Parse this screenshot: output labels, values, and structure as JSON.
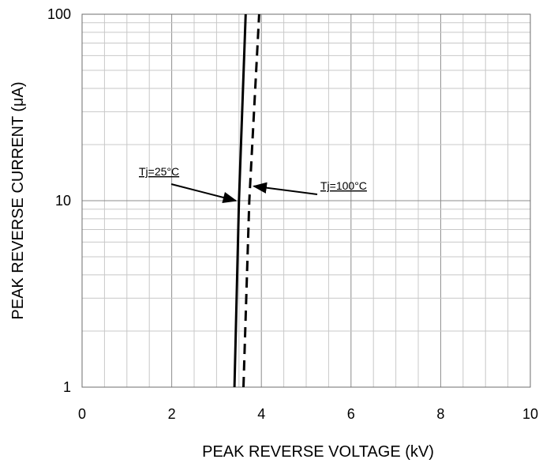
{
  "chart_data": {
    "type": "line",
    "xlabel": "PEAK  REVERSE  VOLTAGE (kV)",
    "ylabel": "PEAK  REVERSE  CURRENT (μA)",
    "xlim": [
      0,
      10
    ],
    "ylim": [
      1,
      100
    ],
    "y_scale": "log",
    "x_ticks": [
      "0",
      "2",
      "4",
      "6",
      "8",
      "10"
    ],
    "y_ticks": [
      "1",
      "10",
      "100"
    ],
    "grid": true,
    "series": [
      {
        "name": "Tj=25°C",
        "style": "solid",
        "color": "#000000",
        "x": [
          3.4,
          3.5,
          3.65
        ],
        "y": [
          1,
          10,
          100
        ]
      },
      {
        "name": "Tj=100°C",
        "style": "dashed",
        "color": "#000000",
        "x": [
          3.6,
          3.73,
          3.95
        ],
        "y": [
          1,
          10,
          100
        ]
      }
    ],
    "annotations": [
      {
        "text": "Tj=25°C",
        "series": 0,
        "point_x": 3.5,
        "point_y": 10
      },
      {
        "text": "Tj=100°C",
        "series": 1,
        "point_x": 3.78,
        "point_y": 11.5
      }
    ]
  }
}
